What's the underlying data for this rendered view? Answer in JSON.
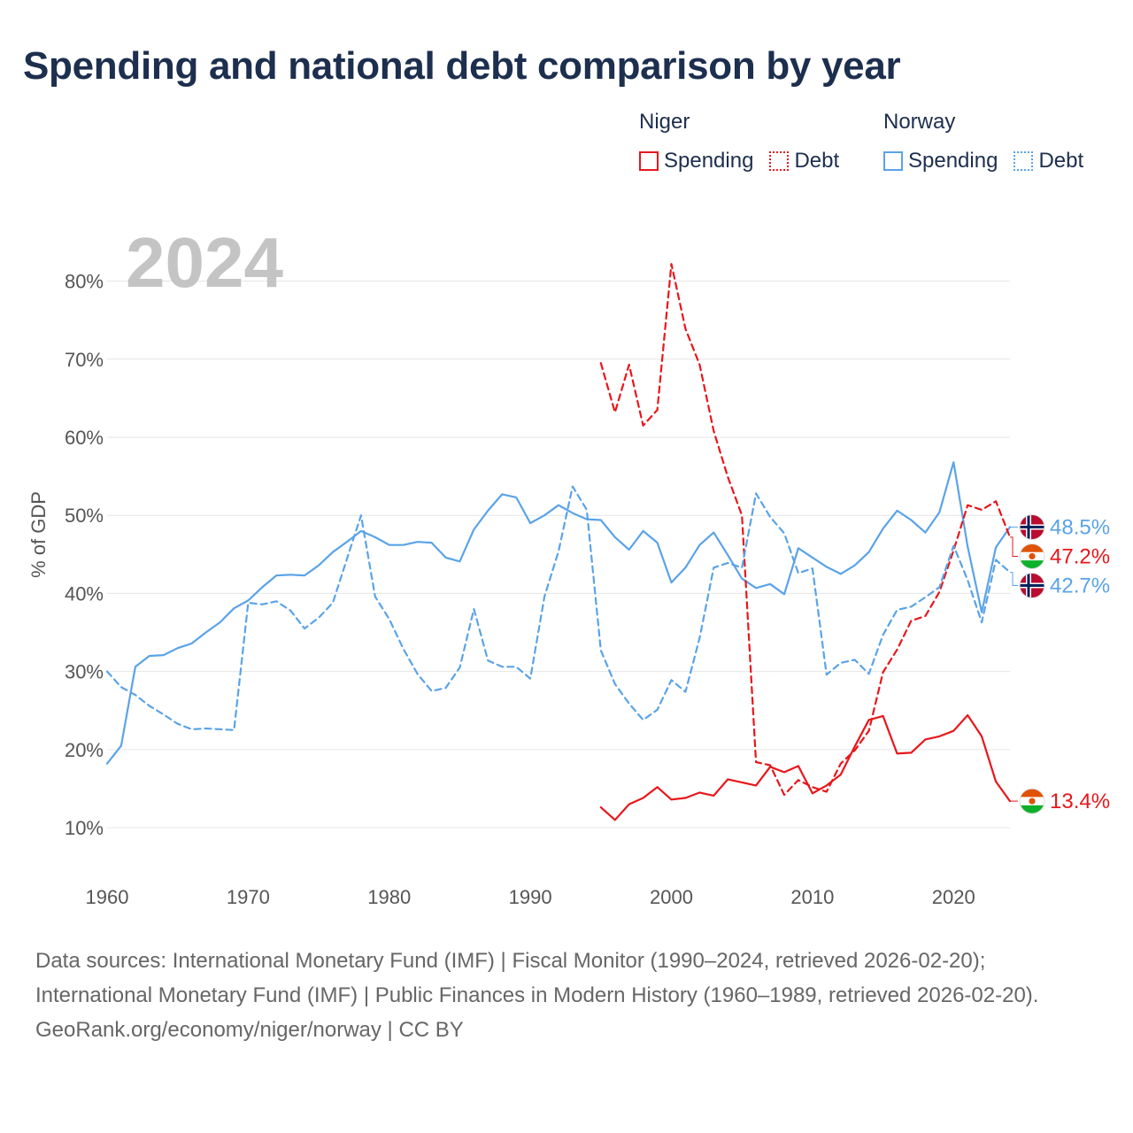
{
  "title": "Spending and national debt comparison by year",
  "legend": {
    "groups": [
      {
        "name": "Niger",
        "color": "#e8161b",
        "items": [
          {
            "label": "Spending",
            "style": "solid"
          },
          {
            "label": "Debt",
            "style": "dotted"
          }
        ]
      },
      {
        "name": "Norway",
        "color": "#5aa3e8",
        "items": [
          {
            "label": "Spending",
            "style": "solid"
          },
          {
            "label": "Debt",
            "style": "dotted"
          }
        ]
      }
    ]
  },
  "chart_data": {
    "type": "line",
    "year_label": "2024",
    "ylabel": "% of GDP",
    "xlim": [
      1960,
      2024
    ],
    "ylim": [
      4,
      88
    ],
    "xticks": [
      1960,
      1970,
      1980,
      1990,
      2000,
      2010,
      2020
    ],
    "xtick_labels": [
      "1960",
      "1970",
      "1980",
      "1990",
      "2000",
      "2010",
      "2020"
    ],
    "yticks": [
      10,
      20,
      30,
      40,
      50,
      60,
      70,
      80
    ],
    "ytick_labels": [
      "10%",
      "20%",
      "30%",
      "40%",
      "50%",
      "60%",
      "70%",
      "80%"
    ],
    "series": [
      {
        "name": "Norway Spending",
        "country": "Norway",
        "color": "#5aa3e8",
        "dash": "solid",
        "x": [
          1960,
          1961,
          1962,
          1963,
          1964,
          1965,
          1966,
          1967,
          1968,
          1969,
          1970,
          1971,
          1972,
          1973,
          1974,
          1975,
          1976,
          1977,
          1978,
          1979,
          1980,
          1981,
          1982,
          1983,
          1984,
          1985,
          1986,
          1987,
          1988,
          1989,
          1990,
          1991,
          1992,
          1993,
          1994,
          1995,
          1996,
          1997,
          1998,
          1999,
          2000,
          2001,
          2002,
          2003,
          2004,
          2005,
          2006,
          2007,
          2008,
          2009,
          2010,
          2011,
          2012,
          2013,
          2014,
          2015,
          2016,
          2017,
          2018,
          2019,
          2020,
          2021,
          2022,
          2023,
          2024
        ],
        "values": [
          18.2,
          20.5,
          30.6,
          32.0,
          32.1,
          33.0,
          33.6,
          35.0,
          36.3,
          38.1,
          39.1,
          40.8,
          42.3,
          42.4,
          42.3,
          43.6,
          45.3,
          46.6,
          48.0,
          47.2,
          46.2,
          46.2,
          46.6,
          46.5,
          44.6,
          44.1,
          48.2,
          50.6,
          52.7,
          52.3,
          49.0,
          50.0,
          51.3,
          50.3,
          49.5,
          49.4,
          47.2,
          45.6,
          48.0,
          46.5,
          41.4,
          43.3,
          46.2,
          47.8,
          44.9,
          41.9,
          40.7,
          41.2,
          39.9,
          45.8,
          44.6,
          43.4,
          42.5,
          43.6,
          45.3,
          48.3,
          50.6,
          49.4,
          47.8,
          50.4,
          56.8,
          46.0,
          37.6,
          45.9,
          48.5
        ],
        "end_label": "48.5%"
      },
      {
        "name": "Niger Debt",
        "country": "Niger",
        "color": "#e8161b",
        "dash": "dashed",
        "x": [
          1995,
          1996,
          1997,
          1998,
          1999,
          2000,
          2001,
          2002,
          2003,
          2004,
          2005,
          2006,
          2007,
          2008,
          2009,
          2010,
          2011,
          2012,
          2013,
          2014,
          2015,
          2016,
          2017,
          2018,
          2019,
          2020,
          2021,
          2022,
          2023,
          2024
        ],
        "values": [
          69.5,
          63.2,
          69.3,
          61.5,
          63.5,
          82.2,
          73.9,
          69.3,
          60.8,
          54.9,
          50.0,
          18.4,
          18.0,
          14.2,
          16.1,
          15.2,
          14.6,
          18.2,
          19.9,
          22.4,
          29.9,
          32.8,
          36.5,
          37.1,
          40.2,
          45.5,
          51.3,
          50.7,
          51.8,
          47.2
        ],
        "end_label": "47.2%"
      },
      {
        "name": "Norway Debt",
        "country": "Norway",
        "color": "#5aa3e8",
        "dash": "dashed",
        "x": [
          1960,
          1961,
          1962,
          1963,
          1964,
          1965,
          1966,
          1967,
          1968,
          1969,
          1970,
          1971,
          1972,
          1973,
          1974,
          1975,
          1976,
          1977,
          1978,
          1979,
          1980,
          1981,
          1982,
          1983,
          1984,
          1985,
          1986,
          1987,
          1988,
          1989,
          1990,
          1991,
          1992,
          1993,
          1994,
          1995,
          1996,
          1997,
          1998,
          1999,
          2000,
          2001,
          2002,
          2003,
          2004,
          2005,
          2006,
          2007,
          2008,
          2009,
          2010,
          2011,
          2012,
          2013,
          2014,
          2015,
          2016,
          2017,
          2018,
          2019,
          2020,
          2021,
          2022,
          2023,
          2024
        ],
        "values": [
          30.0,
          28.0,
          27.0,
          25.6,
          24.5,
          23.3,
          22.6,
          22.7,
          22.6,
          22.5,
          38.8,
          38.6,
          39.0,
          37.8,
          35.5,
          36.9,
          38.8,
          44.4,
          50.0,
          39.6,
          36.7,
          32.9,
          29.7,
          27.5,
          27.9,
          30.5,
          38.0,
          31.4,
          30.6,
          30.6,
          29.1,
          39.6,
          45.4,
          53.7,
          50.7,
          32.7,
          28.4,
          25.9,
          23.8,
          25.1,
          28.9,
          27.4,
          34.3,
          43.3,
          43.9,
          43.3,
          52.8,
          49.8,
          47.7,
          42.6,
          43.2,
          29.6,
          31.1,
          31.5,
          29.7,
          34.7,
          37.9,
          38.3,
          39.5,
          40.8,
          46.1,
          41.7,
          36.3,
          44.3,
          42.7
        ],
        "end_label": "42.7%"
      },
      {
        "name": "Niger Spending",
        "country": "Niger",
        "color": "#e8161b",
        "dash": "solid",
        "x": [
          1995,
          1996,
          1997,
          1998,
          1999,
          2000,
          2001,
          2002,
          2003,
          2004,
          2005,
          2006,
          2007,
          2008,
          2009,
          2010,
          2011,
          2012,
          2013,
          2014,
          2015,
          2016,
          2017,
          2018,
          2019,
          2020,
          2021,
          2022,
          2023,
          2024
        ],
        "values": [
          12.6,
          11.0,
          13.0,
          13.8,
          15.2,
          13.6,
          13.8,
          14.5,
          14.1,
          16.2,
          15.8,
          15.4,
          17.8,
          17.1,
          17.9,
          14.4,
          15.4,
          16.8,
          20.4,
          23.8,
          24.3,
          19.5,
          19.6,
          21.3,
          21.7,
          22.4,
          24.4,
          21.7,
          15.9,
          13.4
        ],
        "end_label": "13.4%"
      }
    ]
  },
  "footer": {
    "sources": "Data sources: International Monetary Fund (IMF) | Fiscal Monitor (1990–2024, retrieved 2026-02-20); International Monetary Fund (IMF) | Public Finances in Modern History (1960–1989, retrieved 2026-02-20).",
    "credit": "GeoRank.org/economy/niger/norway | CC BY"
  }
}
